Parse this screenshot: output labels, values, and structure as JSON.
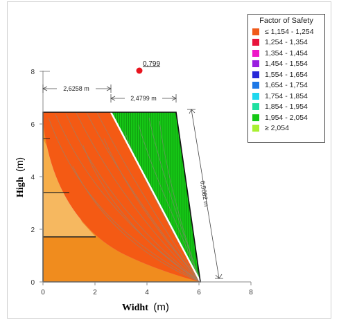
{
  "figure": {
    "x_axis_title": "Widht",
    "x_axis_unit": "(m)",
    "y_axis_title": "High",
    "y_axis_unit": "(m)",
    "x_ticks": [
      "0",
      "2",
      "4",
      "6",
      "8"
    ],
    "y_ticks": [
      "0",
      "2",
      "4",
      "6",
      "8"
    ],
    "critical_fs": "0,799",
    "dimensions": {
      "crest_width": "2,6258 m",
      "slope_width": "2,4799 m",
      "slope_length": "6,5082 m"
    }
  },
  "legend": {
    "title": "Factor of Safety",
    "items": [
      {
        "label": "≤ 1,154 - 1,254",
        "color": "#f05a1a"
      },
      {
        "label": "1,254 - 1,354",
        "color": "#e8143c"
      },
      {
        "label": "1,354 - 1,454",
        "color": "#ee18c8"
      },
      {
        "label": "1,454 - 1,554",
        "color": "#9a1ee0"
      },
      {
        "label": "1,554 - 1,654",
        "color": "#2828d8"
      },
      {
        "label": "1,654 - 1,754",
        "color": "#1e78e6"
      },
      {
        "label": "1,754 - 1,854",
        "color": "#20d8ee"
      },
      {
        "label": "1,854 - 1,954",
        "color": "#20e0a0"
      },
      {
        "label": "1,954 - 2,054",
        "color": "#16c816"
      },
      {
        "label": "≥ 2,054",
        "color": "#a8f032"
      }
    ]
  },
  "colors": {
    "soil_orange": "#f08c1e",
    "soil_light": "#f6b860",
    "soil_light_upper": "#f6ae4a",
    "fs_orange": "#f45a14",
    "fs_magenta": "#ee18c8",
    "fs_green": "#16c816",
    "critical_marker": "#e8141e"
  }
}
